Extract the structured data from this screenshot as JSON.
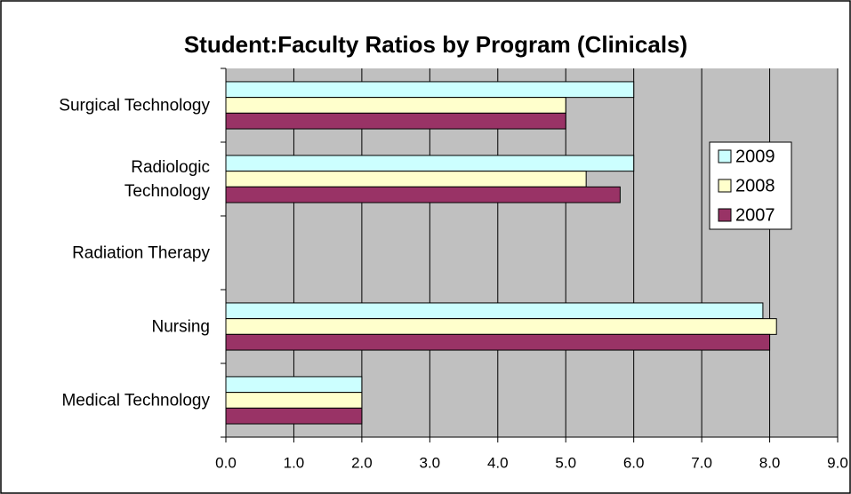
{
  "chart_data": {
    "type": "barh",
    "title": "Student:Faculty Ratios by Program (Clinicals)",
    "categories": [
      "Surgical Technology",
      "Radiologic\nTechnology",
      "Radiation Therapy",
      "Nursing",
      "Medical Technology"
    ],
    "series": [
      {
        "name": "2009",
        "color": "#ccffff",
        "values": [
          6.0,
          6.0,
          null,
          7.9,
          2.0
        ]
      },
      {
        "name": "2008",
        "color": "#ffffcc",
        "values": [
          5.0,
          5.3,
          null,
          8.1,
          2.0
        ]
      },
      {
        "name": "2007",
        "color": "#993366",
        "values": [
          5.0,
          5.8,
          null,
          8.0,
          2.0
        ]
      }
    ],
    "xlim": [
      0,
      9
    ],
    "xticks": [
      {
        "value": 0,
        "label": "0.0"
      },
      {
        "value": 1,
        "label": "1.0"
      },
      {
        "value": 2,
        "label": "2.0"
      },
      {
        "value": 3,
        "label": "3.0"
      },
      {
        "value": 4,
        "label": "4.0"
      },
      {
        "value": 5,
        "label": "5.0"
      },
      {
        "value": 6,
        "label": "6.0"
      },
      {
        "value": 7,
        "label": "7.0"
      },
      {
        "value": 8,
        "label": "8.0"
      },
      {
        "value": 9,
        "label": "9.0"
      }
    ],
    "grid": true,
    "legend": "right"
  }
}
